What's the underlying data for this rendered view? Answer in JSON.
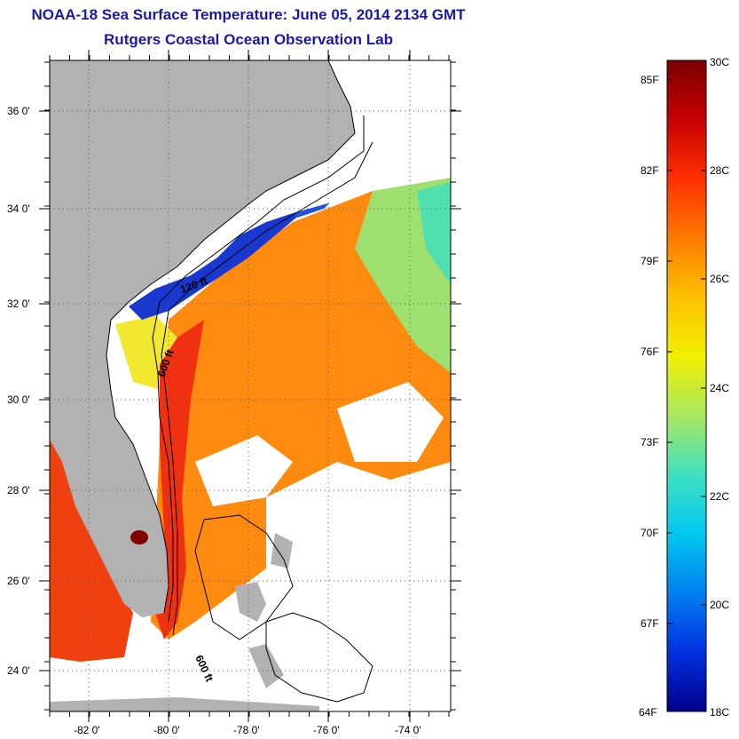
{
  "title": "NOAA-18 Sea Surface Temperature:  June 05, 2014 2134 GMT",
  "subtitle": "Rutgers Coastal Ocean Observation Lab",
  "map": {
    "lat_labels": [
      "36 0'",
      "34 0'",
      "32 0'",
      "30 0'",
      "28 0'",
      "26 0'",
      "24 0'"
    ],
    "lon_labels": [
      "-82 0'",
      "-80 0'",
      "-78 0'",
      "-76 0'",
      "-74 0'"
    ],
    "contour_labels": [
      "120 ft",
      "600 ft",
      "600 ft"
    ]
  },
  "colorbar": {
    "f_labels": [
      "85F",
      "82F",
      "79F",
      "76F",
      "73F",
      "70F",
      "67F",
      "64F"
    ],
    "c_labels": [
      "30C",
      "28C",
      "26C",
      "24C",
      "22C",
      "20C",
      "18C"
    ],
    "colors": [
      "#7a0000",
      "#c80000",
      "#ff3000",
      "#ff7a00",
      "#ffc000",
      "#f0f000",
      "#a8e860",
      "#40e0c0",
      "#00c8f0",
      "#0080f0",
      "#0030e0",
      "#00008a"
    ]
  }
}
